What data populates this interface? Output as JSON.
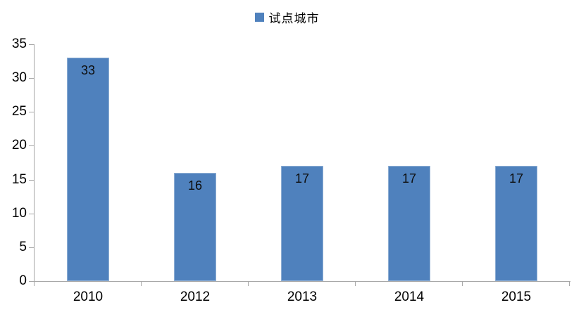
{
  "legend": {
    "label": "试点城市",
    "swatch_color": "#4f81bd"
  },
  "chart_data": {
    "type": "bar",
    "title": "",
    "categories": [
      "2010",
      "2012",
      "2013",
      "2014",
      "2015"
    ],
    "series": [
      {
        "name": "试点城市",
        "values": [
          33,
          16,
          17,
          17,
          17
        ]
      }
    ],
    "data_labels": [
      33,
      16,
      17,
      17,
      17
    ],
    "xlabel": "",
    "ylabel": "",
    "ylim": [
      0,
      35
    ],
    "yticks": [
      0,
      5,
      10,
      15,
      20,
      25,
      30,
      35
    ],
    "grid": false,
    "legend_position": "top-center",
    "data_label_position": "inside-end",
    "bar_color": "#4f81bd",
    "axis_color": "#a6a6a6",
    "text_color": "#000000"
  }
}
